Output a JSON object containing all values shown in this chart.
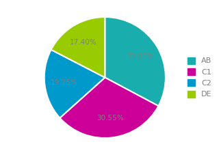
{
  "labels": [
    "AB",
    "C1",
    "C2",
    "DE"
  ],
  "values": [
    32.8,
    30.55,
    19.25,
    17.4
  ],
  "colors": [
    "#1aadad",
    "#cc0099",
    "#0099cc",
    "#99cc00"
  ],
  "pct_labels": [
    "32.80%",
    "30.55%",
    "19.25%",
    "17.40%"
  ],
  "legend_labels": [
    "AB",
    "C1",
    "C2",
    "DE"
  ],
  "background_color": "#ffffff",
  "startangle": 90,
  "label_color": "#7f7f7f",
  "label_fontsize": 7.5,
  "legend_fontsize": 8
}
